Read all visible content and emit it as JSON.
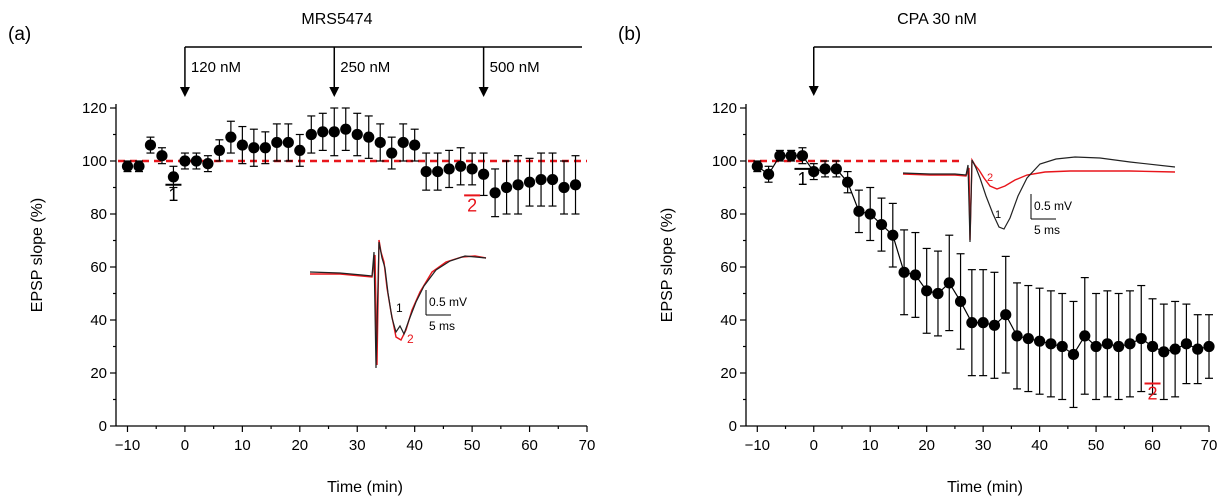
{
  "colors": {
    "ink": "#000000",
    "red": "#e8151b",
    "trace_black": "#222222",
    "trace_red": "#e8151b"
  },
  "chart_data": [
    {
      "type": "scatter",
      "panel_label": "(a)",
      "title": "MRS5474",
      "xlabel": "Time (min)",
      "ylabel": "EPSP slope (%)",
      "xlim": [
        -12,
        70
      ],
      "ylim": [
        0,
        120
      ],
      "xticks": [
        "-10",
        "0",
        "10",
        "20",
        "30",
        "40",
        "50",
        "60",
        "70"
      ],
      "yticks": [
        "0",
        "20",
        "40",
        "60",
        "80",
        "100",
        "120"
      ],
      "baseline": 100,
      "grid": false,
      "drug_bar": {
        "start": 0,
        "end": 68
      },
      "applications": [
        {
          "x": 0,
          "label": "120 nM"
        },
        {
          "x": 26,
          "label": "250 nM"
        },
        {
          "x": 52,
          "label": "500 nM"
        }
      ],
      "markers": [
        {
          "label": "1",
          "x": -2,
          "y": 85,
          "color": "black"
        },
        {
          "label": "2",
          "x": 50,
          "y": 81,
          "color": "red"
        }
      ],
      "series": [
        {
          "x": [
            -10,
            -8,
            -6,
            -4,
            -2,
            0,
            2,
            4,
            6,
            8,
            10,
            12,
            14,
            16,
            18,
            20,
            22,
            24,
            26,
            28,
            30,
            32,
            34,
            36,
            38,
            40,
            42,
            44,
            46,
            48,
            50,
            52,
            54,
            56,
            58,
            60,
            62,
            64,
            66,
            68
          ],
          "y": [
            98,
            98,
            106,
            102,
            94,
            100,
            100,
            99,
            104,
            109,
            106,
            105,
            105,
            107,
            107,
            104,
            110,
            111,
            111,
            112,
            110,
            109,
            107,
            103,
            107,
            106,
            96,
            96,
            97,
            98,
            97,
            95,
            88,
            90,
            91,
            92,
            93,
            93,
            90,
            91
          ],
          "err": [
            2,
            2,
            3,
            3,
            4,
            3,
            3,
            3,
            4,
            6,
            7,
            7,
            6,
            7,
            7,
            6,
            7,
            7,
            9,
            8,
            8,
            8,
            7,
            6,
            7,
            6,
            7,
            7,
            7,
            7,
            6,
            8,
            9,
            10,
            11,
            9,
            10,
            10,
            10,
            11
          ]
        }
      ],
      "inset": {
        "scale_voltage": "0.5 mV",
        "scale_time": "5 ms",
        "trace_labels": [
          "1",
          "2"
        ]
      }
    },
    {
      "type": "scatter",
      "panel_label": "(b)",
      "title": "CPA 30 nM",
      "xlabel": "Time (min)",
      "ylabel": "EPSP slope (%)",
      "xlim": [
        -12,
        70
      ],
      "ylim": [
        0,
        120
      ],
      "xticks": [
        "-10",
        "0",
        "10",
        "20",
        "30",
        "40",
        "50",
        "60",
        "70"
      ],
      "yticks": [
        "0",
        "20",
        "40",
        "60",
        "80",
        "100",
        "120"
      ],
      "baseline": 100,
      "grid": false,
      "drug_bar": {
        "start": 0,
        "end": 70
      },
      "applications": [
        {
          "x": 0,
          "label": ""
        }
      ],
      "markers": [
        {
          "label": "1",
          "x": -2,
          "y": 91,
          "color": "black"
        },
        {
          "label": "2",
          "x": 60,
          "y": 10,
          "color": "red"
        }
      ],
      "series": [
        {
          "x": [
            -10,
            -8,
            -6,
            -4,
            -2,
            0,
            2,
            4,
            6,
            8,
            10,
            12,
            14,
            16,
            18,
            20,
            22,
            24,
            26,
            28,
            30,
            32,
            34,
            36,
            38,
            40,
            42,
            44,
            46,
            48,
            50,
            52,
            54,
            56,
            58,
            60,
            62,
            64,
            66,
            68,
            70
          ],
          "y": [
            98,
            95,
            102,
            102,
            102,
            96,
            97,
            97,
            92,
            81,
            80,
            76,
            72,
            58,
            57,
            51,
            50,
            54,
            47,
            39,
            39,
            38,
            42,
            34,
            33,
            32,
            31,
            30,
            27,
            34,
            30,
            31,
            30,
            31,
            33,
            30,
            28,
            29,
            31,
            29,
            30
          ],
          "err": [
            2,
            3,
            2,
            2,
            3,
            3,
            3,
            3,
            4,
            8,
            10,
            10,
            12,
            16,
            16,
            16,
            16,
            18,
            18,
            20,
            20,
            20,
            22,
            20,
            20,
            20,
            20,
            20,
            20,
            22,
            20,
            20,
            20,
            20,
            20,
            18,
            18,
            18,
            15,
            13,
            12
          ]
        }
      ],
      "inset": {
        "scale_voltage": "0.5 mV",
        "scale_time": "5 ms",
        "trace_labels": [
          "1",
          "2"
        ]
      }
    }
  ]
}
